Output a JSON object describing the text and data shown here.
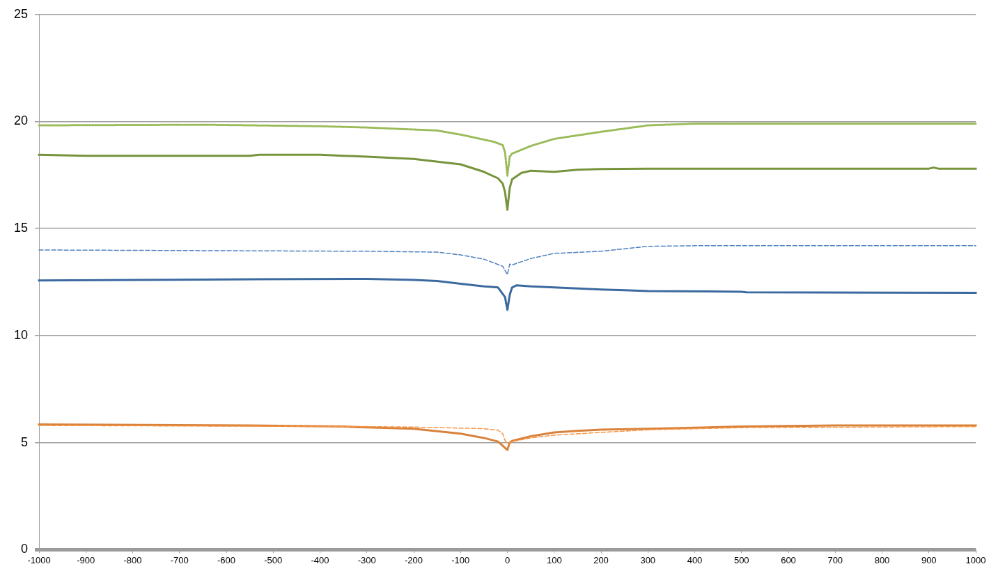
{
  "chart_data": {
    "type": "line",
    "xlim": [
      -1000,
      1000
    ],
    "xticks": [
      -1000,
      -900,
      -800,
      -700,
      -600,
      -500,
      -400,
      -300,
      -200,
      -100,
      0,
      100,
      200,
      300,
      400,
      500,
      600,
      700,
      800,
      900,
      1000
    ],
    "ylim": [
      0,
      25
    ],
    "yticks": [
      0,
      5,
      10,
      15,
      20,
      25
    ],
    "grid": "y",
    "legend": false,
    "marker": "none",
    "line_style": "solid",
    "series": [
      {
        "color": "#9bbb59",
        "line_style": "dotted",
        "x": [
          -1000,
          -650,
          -400,
          -300,
          -150,
          -100,
          -30,
          -10,
          -5,
          0,
          5,
          10,
          50,
          100,
          200,
          300,
          400,
          1000
        ],
        "values": [
          19.82,
          19.85,
          19.78,
          19.72,
          19.58,
          19.39,
          19.06,
          18.9,
          18.56,
          17.47,
          18.36,
          18.5,
          18.86,
          19.19,
          19.52,
          19.82,
          19.9,
          19.9
        ]
      },
      {
        "color": "#77933c",
        "x": [
          -1000,
          -900,
          -550,
          -530,
          -400,
          -350,
          -300,
          -200,
          -100,
          -50,
          -20,
          -10,
          -5,
          0,
          5,
          10,
          30,
          50,
          100,
          150,
          200,
          300,
          900,
          910,
          920,
          1000
        ],
        "values": [
          18.45,
          18.4,
          18.4,
          18.45,
          18.45,
          18.4,
          18.36,
          18.25,
          18.0,
          17.65,
          17.35,
          17.1,
          16.7,
          15.88,
          16.9,
          17.3,
          17.6,
          17.7,
          17.65,
          17.75,
          17.78,
          17.8,
          17.8,
          17.85,
          17.8,
          17.8
        ]
      },
      {
        "color": "#4f81bd",
        "line_style": "dashed",
        "x": [
          -1000,
          -300,
          -150,
          -100,
          -50,
          -10,
          0,
          5,
          10,
          50,
          100,
          200,
          300,
          400,
          1000
        ],
        "values": [
          14.0,
          13.94,
          13.9,
          13.77,
          13.57,
          13.24,
          12.85,
          13.34,
          13.3,
          13.6,
          13.84,
          13.94,
          14.17,
          14.2,
          14.2
        ]
      },
      {
        "color": "#3b6aa0",
        "x": [
          -1000,
          -530,
          -300,
          -200,
          -150,
          -100,
          -50,
          -20,
          -5,
          0,
          5,
          10,
          20,
          50,
          100,
          150,
          200,
          250,
          300,
          500,
          510,
          1000
        ],
        "values": [
          12.58,
          12.63,
          12.65,
          12.6,
          12.55,
          12.42,
          12.3,
          12.25,
          11.8,
          11.2,
          11.9,
          12.25,
          12.35,
          12.3,
          12.25,
          12.2,
          12.15,
          12.12,
          12.08,
          12.05,
          12.02,
          12.0
        ]
      },
      {
        "color": "#f79646",
        "line_style": "dashed",
        "x": [
          -1000,
          -300,
          -200,
          -100,
          -50,
          -20,
          -10,
          -5,
          0,
          5,
          10,
          50,
          100,
          200,
          300,
          500,
          1000
        ],
        "values": [
          5.8,
          5.75,
          5.73,
          5.68,
          5.65,
          5.58,
          5.42,
          5.1,
          4.98,
          5.0,
          5.05,
          5.22,
          5.35,
          5.48,
          5.6,
          5.7,
          5.75
        ]
      },
      {
        "color": "#d9823b",
        "x": [
          -1000,
          -550,
          -350,
          -300,
          -200,
          -100,
          -50,
          -20,
          0,
          5,
          10,
          50,
          100,
          150,
          200,
          300,
          500,
          700,
          1000
        ],
        "values": [
          5.85,
          5.8,
          5.75,
          5.71,
          5.65,
          5.42,
          5.22,
          5.05,
          4.66,
          5.0,
          5.08,
          5.3,
          5.48,
          5.55,
          5.61,
          5.65,
          5.75,
          5.8,
          5.8
        ]
      }
    ]
  }
}
